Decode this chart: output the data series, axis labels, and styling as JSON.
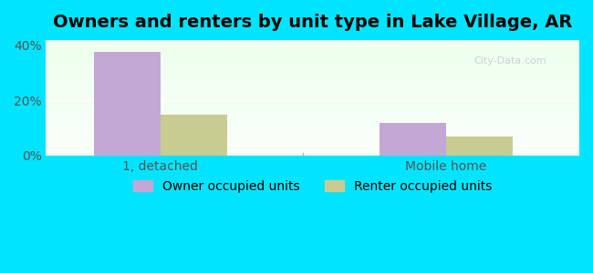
{
  "title": "Owners and renters by unit type in Lake Village, AR",
  "categories": [
    "1, detached",
    "Mobile home"
  ],
  "owner_values": [
    37.5,
    12.0
  ],
  "renter_values": [
    15.0,
    7.0
  ],
  "owner_color": "#c4a8d4",
  "renter_color": "#c8cc90",
  "ylim": [
    0,
    42
  ],
  "yticks": [
    0,
    20,
    40
  ],
  "ytick_labels": [
    "0%",
    "20%",
    "40%"
  ],
  "bar_width": 0.35,
  "background_top": "#e8f5e8",
  "background_bottom": "#f5fff5",
  "outer_bg": "#00e5ff",
  "legend_labels": [
    "Owner occupied units",
    "Renter occupied units"
  ],
  "watermark": "City-Data.com",
  "title_fontsize": 14,
  "axis_fontsize": 10,
  "legend_fontsize": 10
}
